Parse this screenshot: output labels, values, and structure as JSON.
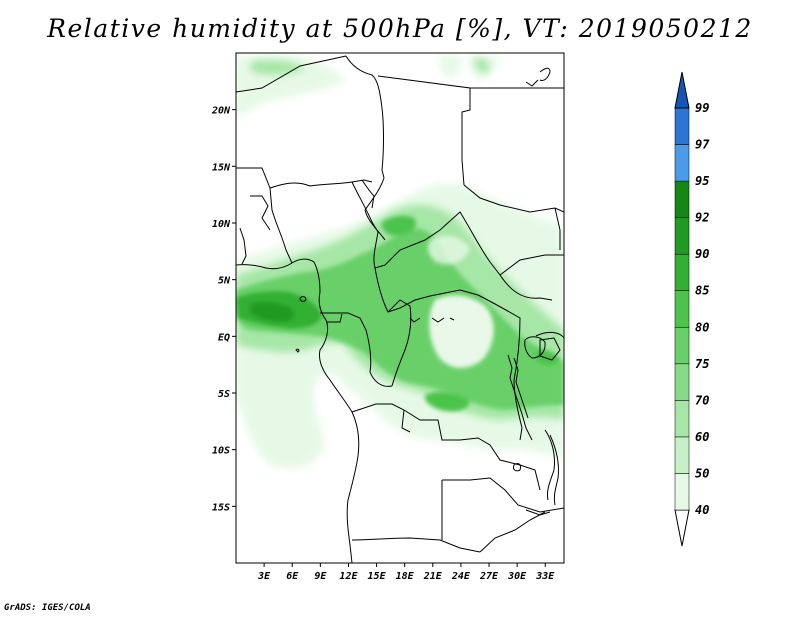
{
  "title": "Relative humidity at 500hPa [%], VT: 2019050212",
  "credit": "GrADS: IGES/COLA",
  "map": {
    "lat_labels": [
      "20N",
      "15N",
      "10N",
      "5N",
      "EQ",
      "5S",
      "10S",
      "15S"
    ],
    "lat_values": [
      20,
      15,
      10,
      5,
      0,
      -5,
      -10,
      -15
    ],
    "lon_labels": [
      "3E",
      "6E",
      "9E",
      "12E",
      "15E",
      "18E",
      "21E",
      "24E",
      "27E",
      "30E",
      "33E"
    ],
    "lon_values": [
      3,
      6,
      9,
      12,
      15,
      18,
      21,
      24,
      27,
      30,
      33
    ],
    "lon_range": [
      0,
      35
    ],
    "lat_range": [
      -20,
      25
    ]
  },
  "colorbar": {
    "levels": [
      "40",
      "50",
      "60",
      "70",
      "75",
      "80",
      "85",
      "90",
      "92",
      "95",
      "97",
      "99"
    ],
    "colors": [
      "#ffffff",
      "#e6f9e6",
      "#c8f0c8",
      "#a6e6a6",
      "#87db87",
      "#69d069",
      "#4cc44c",
      "#33b033",
      "#219a21",
      "#148714",
      "#4a9ce8",
      "#2c75d6",
      "#1456b8"
    ]
  },
  "colors": {
    "coast": "#000000",
    "rh_light": "#e6f9e6",
    "rh_mid": "#87db87",
    "rh_dark": "#2e8c2e"
  }
}
